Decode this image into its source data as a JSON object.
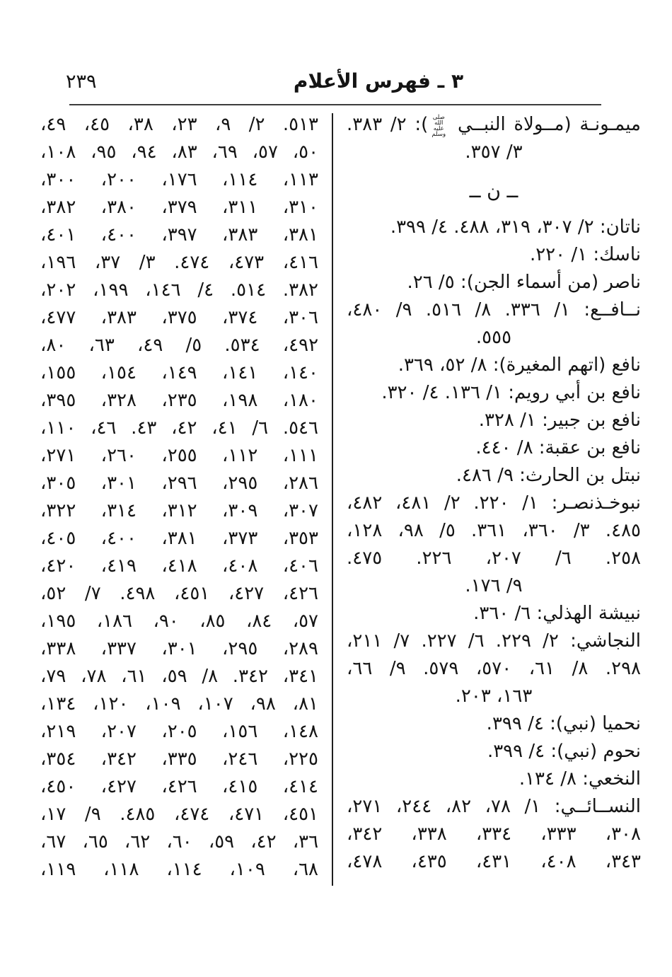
{
  "page": {
    "number": "٢٣٩",
    "title": "٣ ـ فهرس الأعلام"
  },
  "honorific": "صلى الله عليه وسلم",
  "left_column": {
    "lines": [
      "٥١٣. ٢/ ٩، ٢٣، ٣٨، ٤٥، ٤٩،",
      "٥٠، ٥٧، ٦٩، ٨٣، ٩٤، ٩٥، ١٠٨،",
      "١١٣، ١١٤، ١٧٦، ٢٠٠، ٣٠٠،",
      "٣١٠، ٣١١، ٣٧٩، ٣٨٠، ٣٨٢،",
      "٣٨١، ٣٨٣، ٣٩٧، ٤٠٠، ٤٠١،",
      "٤١٦، ٤٧٣، ٤٧٤. ٣/ ٣٧، ١٩٦،",
      "٣٨٢. ٥١٤. ٤/ ١٤٦، ١٩٩، ٢٠٢،",
      "٣٠٦، ٣٧٤، ٣٧٥، ٣٨٣، ٤٧٧،",
      "٤٩٢، ٥٣٤. ٥/ ٤٩، ٦٣، ٨٠،",
      "١٤٠، ١٤١، ١٤٩، ١٥٤، ١٥٥،",
      "١٨٠، ١٩٨، ٢٣٥، ٣٢٨، ٣٩٥،",
      "٥٤٦. ٦/ ٤١، ٤٢، ٤٣. ٤٦، ١١٠،",
      "١١١، ١١٢، ٢٥٥، ٢٦٠، ٢٧١،",
      "٢٨٦، ٢٩٥، ٢٩٦، ٣٠١، ٣٠٥،",
      "٣٠٧، ٣٠٩، ٣١٢، ٣١٤، ٣٢٢،",
      "٣٥٣، ٣٧٣، ٣٨١، ٤٠٠، ٤٠٥،",
      "٤٠٦، ٤٠٨، ٤١٨، ٤١٩، ٤٢٠،",
      "٤٢٦، ٤٢٧، ٤٥١، ٤٩٨. ٧/ ٥٢،",
      "٥٧، ٨٤، ٨٥، ٩٠، ١٨٦، ١٩٥،",
      "٢٨٩، ٢٩٥، ٣٠١، ٣٣٧، ٣٣٨،",
      "٣٤١، ٣٤٢. ٨/ ٥٩، ٦١، ٧٨، ٧٩،",
      "٨١، ٩٨، ١٠٧، ١٠٩، ١٢٠، ١٣٤،",
      "١٤٨، ١٥٦، ٢٠٥، ٢٠٧، ٢١٩،",
      "٢٢٥، ٢٤٦، ٣٣٥، ٣٤٢، ٣٥٤،",
      "٤١٤، ٤١٥، ٤٢٦، ٤٢٧، ٤٥٠،",
      "٤٥١، ٤٧١، ٤٧٤، ٤٨٥. ٩/ ١٧،",
      "٣٦، ٤٢، ٥٩، ٦٠، ٦٢، ٦٥، ٦٧،",
      "٦٨، ١٠٩، ١١٤، ١١٨، ١١٩،"
    ]
  },
  "right_column": {
    "entries": [
      {
        "lines": [
          "ميمـونـة (مــولاة النبــي ﷺ): ٢/ ٣٨٣.",
          "٣/ ٣٥٧."
        ]
      },
      {
        "section": "ــ ن ــ"
      },
      {
        "lines": [
          "ناتان: ٢/ ٣٠٧، ٣١٩، ٤٨٨. ٤/ ٣٩٩."
        ]
      },
      {
        "lines": [
          "ناسك: ١/ ٢٢٠."
        ]
      },
      {
        "lines": [
          "ناصر (من أسماء الجن): ٥/ ٢٦."
        ]
      },
      {
        "lines": [
          "نــافــع: ١/ ٣٣٦. ٨/ ٥١٦. ٩/ ٤٨٠،",
          "٥٥٥."
        ]
      },
      {
        "lines": [
          "نافع (اتهم المغيرة): ٨/ ٥٢، ٣٦٩."
        ]
      },
      {
        "lines": [
          "نافع بن أبي رويم: ١/ ١٣٦. ٤/ ٣٢٠."
        ]
      },
      {
        "lines": [
          "نافع بن جبير: ١/ ٣٢٨."
        ]
      },
      {
        "lines": [
          "نافع بن عقبة: ٨/ ٤٤٠."
        ]
      },
      {
        "lines": [
          "نبتل بن الحارث: ٩/ ٤٨٦."
        ]
      },
      {
        "lines": [
          "نبوخـذنصـر: ١/ ٢٢٠. ٢/ ٤٨١، ٤٨٢،",
          "٤٨٥. ٣/ ٣٦٠، ٣٦١. ٥/ ٩٨، ١٢٨،",
          "٢٥٨. ٦/ ٢٠٧، ٢٢٦. ٤٧٥.",
          "٩/ ١٧٦."
        ]
      },
      {
        "lines": [
          "نبيشة الهذلي: ٦/ ٣٦٠."
        ]
      },
      {
        "lines": [
          "النجاشي: ٢/ ٢٢٩. ٦/ ٢٢٧. ٧/ ٢١١،",
          "٢٩٨. ٨/ ٦١، ٥٧٠، ٥٧٩. ٩/ ٦٦،",
          "١٦٣، ٢٠٣."
        ]
      },
      {
        "lines": [
          "نحميا (نبي): ٤/ ٣٩٩."
        ]
      },
      {
        "lines": [
          "نحوم (نبي): ٤/ ٣٩٩."
        ]
      },
      {
        "lines": [
          "النخعي: ٨/ ١٣٤."
        ]
      },
      {
        "lines": [
          "النســائــي: ١/ ٧٨، ٨٢، ٢٤٤، ٢٧١،",
          "٣٠٨، ٣٣٣، ٣٣٤، ٣٣٨، ٣٤٢،",
          "٣٤٣، ٤٠٨، ٤٣١، ٤٣٥، ٤٧٨،"
        ]
      }
    ]
  }
}
